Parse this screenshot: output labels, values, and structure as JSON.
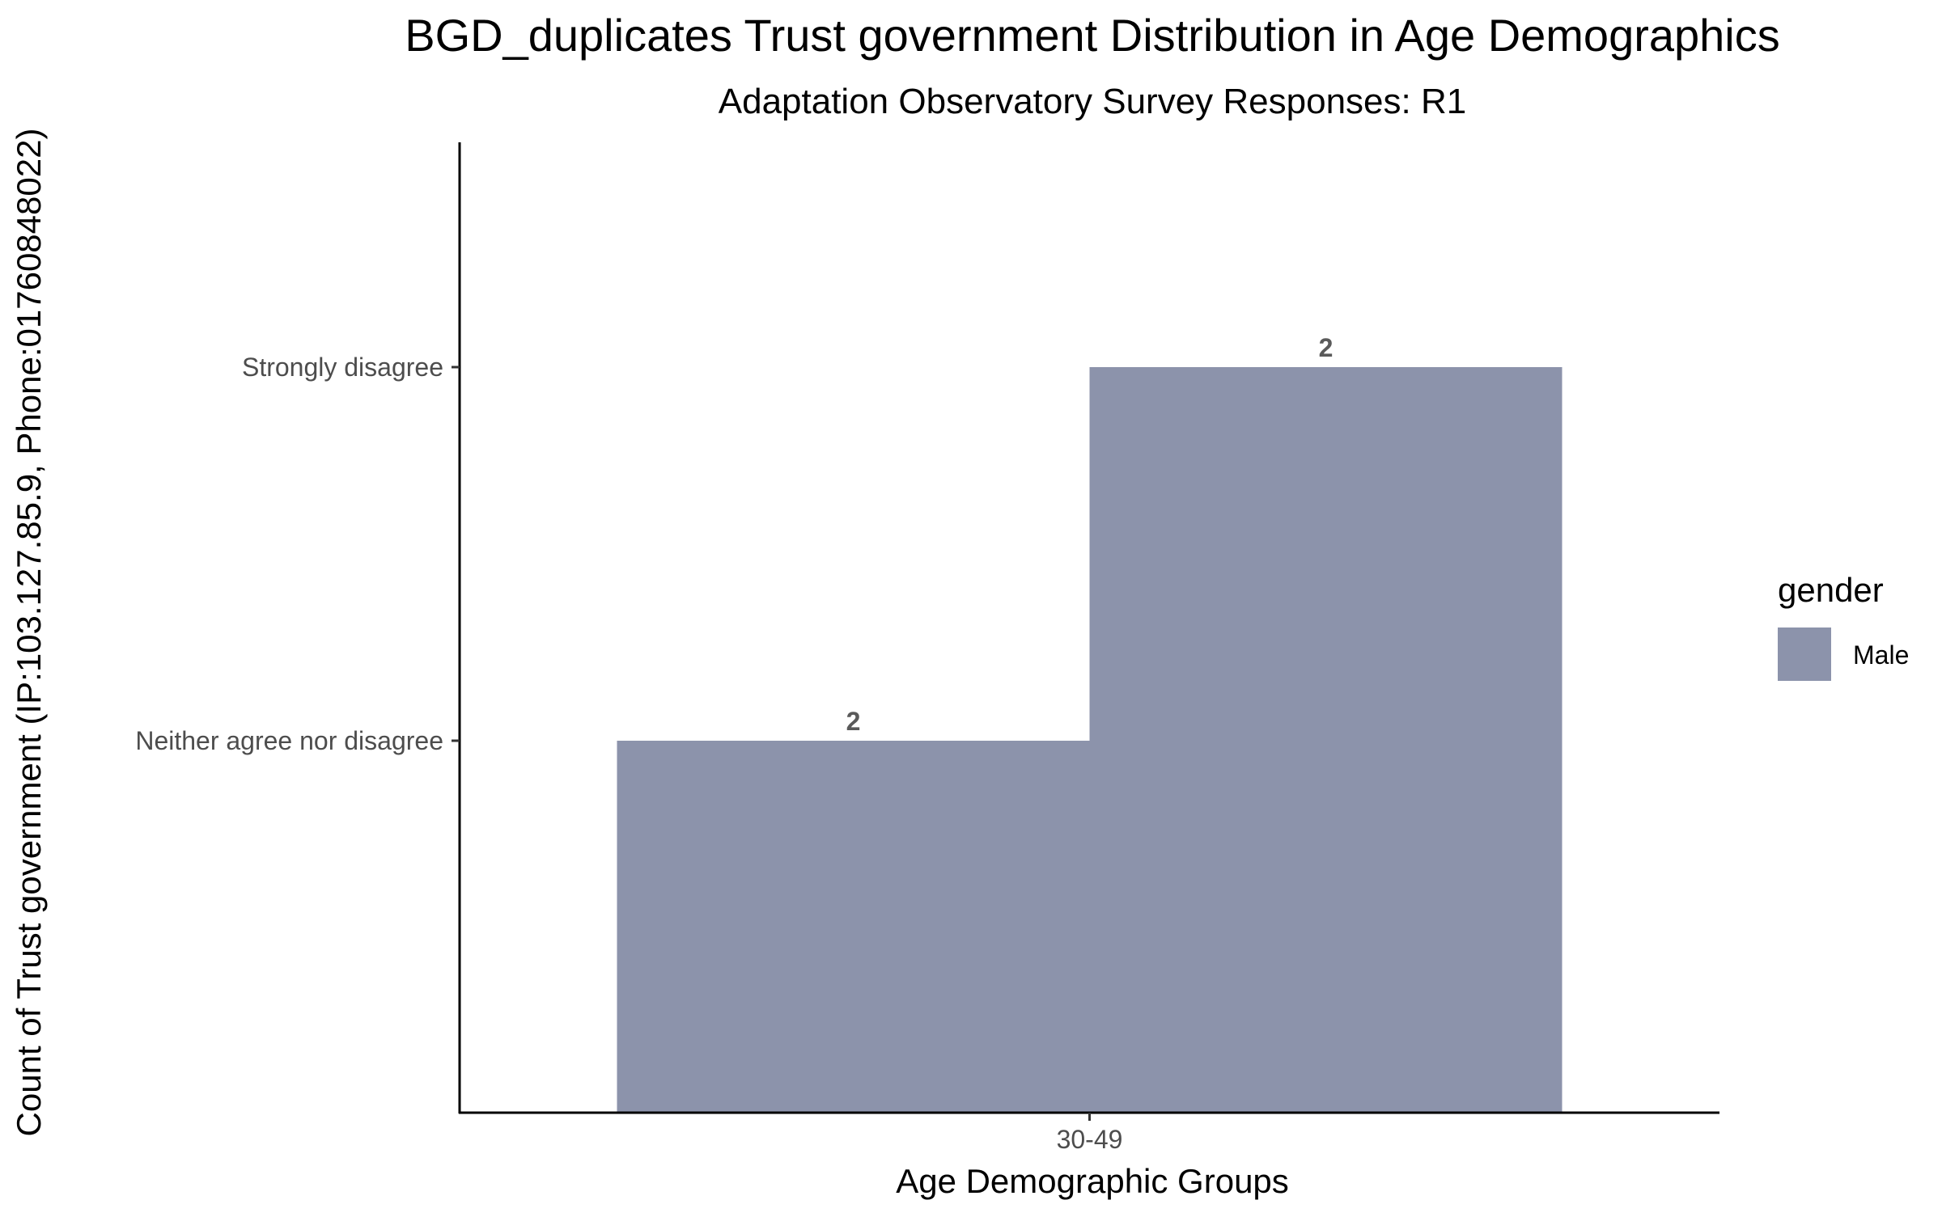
{
  "chart_data": {
    "type": "bar",
    "title": "BGD_duplicates Trust government Distribution in Age Demographics",
    "subtitle": "Adaptation Observatory Survey Responses: R1",
    "xlabel": "Age Demographic Groups",
    "ylabel": "Count of Trust government (IP:103.127.85.9, Phone:01760848022)",
    "categories": [
      "30-49"
    ],
    "y_categories": [
      "Neither agree nor disagree",
      "Strongly disagree"
    ],
    "bars": [
      {
        "category": "30-49",
        "dodge_index": 0,
        "dodge_total": 2,
        "value": "Neither agree nor disagree",
        "label": "2",
        "series": "Male"
      },
      {
        "category": "30-49",
        "dodge_index": 1,
        "dodge_total": 2,
        "value": "Strongly disagree",
        "label": "2",
        "series": "Male"
      }
    ],
    "series": [
      {
        "name": "Male",
        "color": "#8c93ab"
      }
    ],
    "legend": {
      "title": "gender",
      "position": "right"
    },
    "grid": false
  }
}
